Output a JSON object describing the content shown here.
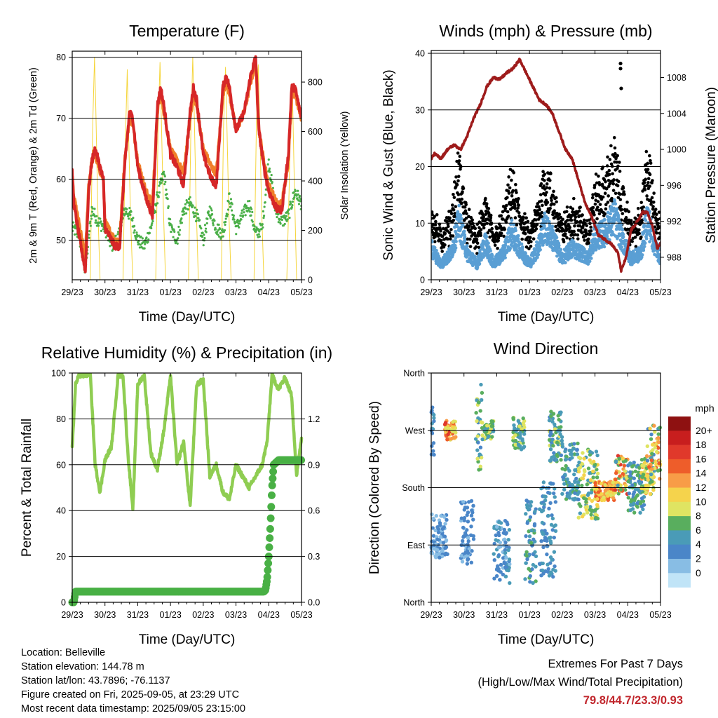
{
  "footer": {
    "location": "Location: Belleville",
    "elevation": "Station elevation: 144.78 m",
    "latlon": "Station lat/lon: 43.7896; -76.1137",
    "created": "Figure created on Fri, 2025-09-05, at 23:29 UTC",
    "recent": "Most recent data timestamp: 2025/09/05 23:15:00",
    "extremes_title": "Extremes For Past 7 Days",
    "extremes_subtitle": "(High/Low/Max Wind/Total Precipitation)",
    "extremes_values": "79.8/44.7/23.3/0.93"
  },
  "chart_data": [
    {
      "type": "line",
      "title": "Temperature (F)",
      "xlabel": "Time (Day/UTC)",
      "ylabel": "2m & 9m T (Red, Orange) & 2m Td (Green)",
      "y2label": "Solar Insolation (Yellow)",
      "xlim": [
        0,
        7
      ],
      "xticks": [
        "29/23",
        "30/23",
        "31/23",
        "01/23",
        "02/23",
        "03/23",
        "04/23",
        "05/23"
      ],
      "ylim": [
        43.5,
        81
      ],
      "yticks": [
        50,
        60,
        70,
        80
      ],
      "y2lim": [
        0,
        925
      ],
      "y2ticks": [
        0,
        200,
        400,
        600,
        800
      ],
      "grid": true,
      "colors": {
        "t2": "#d62728",
        "t9": "#f07f2a",
        "td": "#4aaf48",
        "solar": "#f5d53c"
      },
      "series": [
        {
          "key": "t2",
          "x": [
            0,
            0.05,
            0.2,
            0.4,
            0.5,
            0.6,
            0.7,
            0.8,
            0.95,
            1,
            1.3,
            1.45,
            1.6,
            1.75,
            1.85,
            2,
            2.25,
            2.45,
            2.6,
            2.7,
            2.8,
            3,
            3.2,
            3.4,
            3.6,
            3.7,
            3.8,
            4,
            4.25,
            4.4,
            4.6,
            4.7,
            4.8,
            5,
            5.25,
            5.45,
            5.6,
            5.7,
            5.85,
            6,
            6.25,
            6.4,
            6.6,
            6.7,
            6.8,
            7
          ],
          "values": [
            61,
            56,
            51,
            45,
            58,
            63,
            65,
            63,
            60,
            52,
            49,
            49,
            62,
            71,
            70,
            62,
            57,
            54,
            72,
            75,
            72,
            64,
            62,
            59,
            71,
            75,
            73,
            64,
            60,
            59,
            75,
            77,
            75,
            68,
            71,
            77,
            80,
            68,
            62,
            58,
            55,
            55,
            64,
            75,
            75,
            70
          ]
        },
        {
          "key": "t9",
          "x": [
            0,
            0.05,
            0.2,
            0.4,
            0.5,
            0.6,
            0.7,
            0.8,
            0.95,
            1,
            1.3,
            1.45,
            1.6,
            1.75,
            1.85,
            2,
            2.25,
            2.45,
            2.6,
            2.7,
            2.8,
            3,
            3.2,
            3.4,
            3.6,
            3.7,
            3.8,
            4,
            4.25,
            4.4,
            4.6,
            4.7,
            4.8,
            5,
            5.25,
            5.45,
            5.6,
            5.7,
            5.85,
            6,
            6.25,
            6.4,
            6.6,
            6.7,
            6.8,
            7
          ],
          "values": [
            60.5,
            57,
            53,
            47,
            59,
            63,
            64,
            62,
            60,
            53,
            50,
            50,
            63,
            70,
            69,
            63,
            58,
            56,
            71,
            74,
            71,
            65,
            63,
            61,
            70,
            74,
            72,
            65,
            62,
            61,
            74,
            76,
            74,
            68,
            71,
            76,
            79,
            68,
            63,
            59,
            56,
            56,
            63,
            74,
            74,
            70
          ]
        },
        {
          "key": "td",
          "x": [
            0,
            0.2,
            0.4,
            0.6,
            0.8,
            1,
            1.2,
            1.45,
            1.6,
            1.8,
            2,
            2.2,
            2.4,
            2.6,
            2.8,
            3,
            3.2,
            3.4,
            3.6,
            3.8,
            4,
            4.2,
            4.4,
            4.6,
            4.8,
            5,
            5.2,
            5.4,
            5.6,
            5.8,
            6,
            6.2,
            6.4,
            6.6,
            6.8,
            7
          ],
          "values": [
            52,
            51,
            45,
            55,
            53,
            52,
            49,
            51,
            55,
            54,
            50,
            49,
            52,
            57,
            61,
            52,
            50,
            55,
            56,
            54,
            50,
            55,
            52,
            51,
            57,
            52,
            54,
            56,
            51,
            52,
            63,
            55,
            53,
            54,
            58,
            56
          ]
        },
        {
          "key": "solar",
          "x": [
            0.55,
            0.62,
            0.68,
            0.72,
            0.78,
            0.85,
            1.55,
            1.62,
            1.68,
            1.72,
            1.78,
            1.85,
            2.55,
            2.62,
            2.68,
            2.72,
            2.78,
            2.85,
            3.55,
            3.62,
            3.68,
            3.72,
            3.78,
            3.85,
            4.55,
            4.62,
            4.68,
            4.72,
            4.78,
            4.85,
            5.55,
            5.62,
            5.68,
            5.72,
            5.78,
            5.85,
            6.55,
            6.62,
            6.68,
            6.72,
            6.78,
            6.85
          ],
          "values": [
            0,
            600,
            900,
            700,
            300,
            0,
            0,
            550,
            850,
            600,
            250,
            0,
            0,
            600,
            880,
            650,
            300,
            0,
            0,
            580,
            900,
            700,
            320,
            0,
            0,
            620,
            860,
            640,
            280,
            0,
            0,
            600,
            870,
            660,
            300,
            0,
            0,
            350,
            700,
            780,
            400,
            0
          ]
        }
      ]
    },
    {
      "type": "scatter",
      "title": "Winds (mph) & Pressure (mb)",
      "xlabel": "Time (Day/UTC)",
      "ylabel": "Sonic Wind & Gust (Blue, Black)",
      "y2label": "Station Pressure (Maroon)",
      "xlim": [
        0,
        7
      ],
      "xticks": [
        "29/23",
        "30/23",
        "31/23",
        "01/23",
        "02/23",
        "03/23",
        "04/23",
        "05/23"
      ],
      "ylim": [
        0,
        40.5
      ],
      "yticks": [
        0,
        10,
        20,
        30,
        40
      ],
      "y2lim": [
        985.5,
        1011
      ],
      "y2ticks": [
        988,
        992,
        996,
        1000,
        1004,
        1008
      ],
      "grid": true,
      "colors": {
        "wind": "#5a9fd4",
        "gust": "#000000",
        "pressure": "#9e1b1b"
      },
      "wind_profile": {
        "x": [
          0,
          0.3,
          0.6,
          0.85,
          1.1,
          1.4,
          1.65,
          1.9,
          2.2,
          2.45,
          2.7,
          3.0,
          3.25,
          3.45,
          3.7,
          4.0,
          4.3,
          4.6,
          4.8,
          5.0,
          5.3,
          5.6,
          5.8,
          6.1,
          6.4,
          6.6,
          6.8,
          7
        ],
        "values": [
          6,
          3,
          5,
          11,
          5,
          3,
          7,
          3,
          5,
          9,
          6,
          3,
          6,
          10,
          8,
          4,
          6,
          5,
          4,
          8,
          9,
          12,
          8,
          4,
          5,
          12,
          7,
          4
        ]
      },
      "gust_points": [
        {
          "x": 5.78,
          "y": 38.2
        },
        {
          "x": 5.78,
          "y": 37.3
        },
        {
          "x": 5.8,
          "y": 33.8
        }
      ],
      "series": [
        {
          "key": "pressure",
          "x": [
            0,
            0.1,
            0.3,
            0.5,
            0.7,
            0.9,
            1.1,
            1.3,
            1.5,
            1.7,
            1.9,
            2.1,
            2.3,
            2.5,
            2.7,
            2.9,
            3.1,
            3.3,
            3.5,
            3.7,
            3.9,
            4.1,
            4.3,
            4.5,
            4.7,
            4.9,
            5.1,
            5.3,
            5.5,
            5.7,
            5.8,
            5.95,
            6.1,
            6.3,
            6.45,
            6.6,
            6.75,
            6.9,
            7
          ],
          "values": [
            999,
            999.5,
            999,
            1000,
            1000.5,
            1000,
            1001.5,
            1003.5,
            1005,
            1007,
            1008,
            1007.8,
            1008.5,
            1009,
            1010,
            1008.5,
            1007,
            1005.5,
            1005,
            1004,
            1002,
            1000,
            999,
            996.5,
            994,
            992.5,
            990.5,
            990,
            989.5,
            988.5,
            986.5,
            988,
            991,
            992,
            993,
            993,
            991.5,
            989,
            989.5
          ]
        }
      ]
    },
    {
      "type": "line",
      "title": "Relative Humidity (%) & Precipitation (in)",
      "xlabel": "Time (Day/UTC)",
      "ylabel": "Percent & Total Rainfall",
      "xlim": [
        0,
        7
      ],
      "xticks": [
        "29/23",
        "30/23",
        "31/23",
        "01/23",
        "02/23",
        "03/23",
        "04/23",
        "05/23"
      ],
      "ylim": [
        0,
        100
      ],
      "yticks": [
        0,
        20,
        40,
        60,
        80,
        100
      ],
      "y2lim": [
        0,
        1.5
      ],
      "y2ticks": [
        "0.0",
        "0.3",
        "0.6",
        "0.9",
        "1.2"
      ],
      "grid": true,
      "colors": {
        "rh": "#8fcd52",
        "precip": "#49b045"
      },
      "series": [
        {
          "key": "rh",
          "x": [
            0,
            0.1,
            0.2,
            0.4,
            0.55,
            0.7,
            0.85,
            1,
            1.2,
            1.4,
            1.55,
            1.7,
            1.85,
            2,
            2.2,
            2.4,
            2.6,
            2.8,
            3,
            3.2,
            3.4,
            3.6,
            3.8,
            4,
            4.2,
            4.4,
            4.6,
            4.8,
            5,
            5.2,
            5.4,
            5.6,
            5.8,
            5.95,
            6.1,
            6.3,
            6.5,
            6.7,
            6.85,
            7
          ],
          "values": [
            67,
            95,
            99,
            99,
            100,
            60,
            48,
            62,
            68,
            99,
            99,
            65,
            40,
            95,
            99,
            65,
            58,
            75,
            99,
            60,
            70,
            42,
            95,
            97,
            55,
            60,
            48,
            45,
            60,
            55,
            50,
            55,
            60,
            70,
            99,
            93,
            98,
            90,
            55,
            72
          ]
        },
        {
          "key": "precip",
          "x": [
            0,
            0.05,
            0.1,
            0.5,
            1,
            2,
            3,
            4,
            5,
            5.85,
            5.9,
            5.95,
            6.0,
            6.05,
            6.1,
            6.15,
            6.3,
            6.6,
            7
          ],
          "values": [
            0,
            0,
            0.07,
            0.07,
            0.07,
            0.07,
            0.07,
            0.07,
            0.07,
            0.07,
            0.08,
            0.15,
            0.3,
            0.5,
            0.75,
            0.9,
            0.93,
            0.93,
            0.93
          ]
        }
      ]
    },
    {
      "type": "scatter",
      "title": "Wind Direction",
      "xlabel": "Time (Day/UTC)",
      "ylabel": "Direction (Colored By Speed)",
      "xlim": [
        0,
        7
      ],
      "xticks": [
        "29/23",
        "30/23",
        "31/23",
        "01/23",
        "02/23",
        "03/23",
        "04/23",
        "05/23"
      ],
      "ylim": [
        0,
        360
      ],
      "yticks": [
        "North",
        "East",
        "South",
        "West",
        "North"
      ],
      "grid": true,
      "legend": {
        "title": "mph",
        "placement": "right",
        "labels": [
          "20+",
          "18",
          "16",
          "14",
          "12",
          "10",
          "8",
          "6",
          "4",
          "2",
          "0"
        ],
        "colors": [
          "#8e1111",
          "#c81e1e",
          "#e0392b",
          "#ee5d2a",
          "#f89c47",
          "#f5d34c",
          "#dfe462",
          "#59ae5e",
          "#4a9bb7",
          "#4a86c8",
          "#88bde4",
          "#c0e4f7"
        ]
      },
      "clusters": [
        {
          "x": [
            0,
            0.5
          ],
          "dir": [
            70,
            140
          ],
          "speed": [
            1,
            3
          ]
        },
        {
          "x": [
            0,
            0.1
          ],
          "dir": [
            230,
            330
          ],
          "speed": [
            2,
            6
          ]
        },
        {
          "x": [
            0.4,
            0.75
          ],
          "dir": [
            255,
            285
          ],
          "speed": [
            8,
            17
          ]
        },
        {
          "x": [
            0.9,
            1.3
          ],
          "dir": [
            60,
            160
          ],
          "speed": [
            1,
            4
          ]
        },
        {
          "x": [
            1.35,
            1.55
          ],
          "dir": [
            200,
            345
          ],
          "speed": [
            3,
            9
          ]
        },
        {
          "x": [
            1.55,
            1.9
          ],
          "dir": [
            255,
            285
          ],
          "speed": [
            4,
            10
          ]
        },
        {
          "x": [
            1.9,
            2.4
          ],
          "dir": [
            30,
            130
          ],
          "speed": [
            1,
            5
          ]
        },
        {
          "x": [
            2.5,
            2.85
          ],
          "dir": [
            240,
            290
          ],
          "speed": [
            4,
            9
          ]
        },
        {
          "x": [
            2.85,
            3.2
          ],
          "dir": [
            30,
            160
          ],
          "speed": [
            2,
            7
          ]
        },
        {
          "x": [
            3.3,
            3.8
          ],
          "dir": [
            40,
            190
          ],
          "speed": [
            2,
            6
          ]
        },
        {
          "x": [
            3.6,
            4.0
          ],
          "dir": [
            220,
            300
          ],
          "speed": [
            3,
            9
          ]
        },
        {
          "x": [
            4.0,
            4.5
          ],
          "dir": [
            160,
            250
          ],
          "speed": [
            3,
            7
          ]
        },
        {
          "x": [
            4.5,
            5.1
          ],
          "dir": [
            130,
            240
          ],
          "speed": [
            4,
            12
          ]
        },
        {
          "x": [
            5.0,
            5.6
          ],
          "dir": [
            160,
            190
          ],
          "speed": [
            8,
            16
          ]
        },
        {
          "x": [
            5.6,
            6.0
          ],
          "dir": [
            170,
            230
          ],
          "speed": [
            5,
            18
          ]
        },
        {
          "x": [
            6.0,
            6.5
          ],
          "dir": [
            140,
            220
          ],
          "speed": [
            2,
            8
          ]
        },
        {
          "x": [
            6.4,
            6.8
          ],
          "dir": [
            170,
            230
          ],
          "speed": [
            6,
            14
          ]
        },
        {
          "x": [
            6.6,
            7.0
          ],
          "dir": [
            190,
            280
          ],
          "speed": [
            3,
            16
          ]
        }
      ]
    }
  ]
}
